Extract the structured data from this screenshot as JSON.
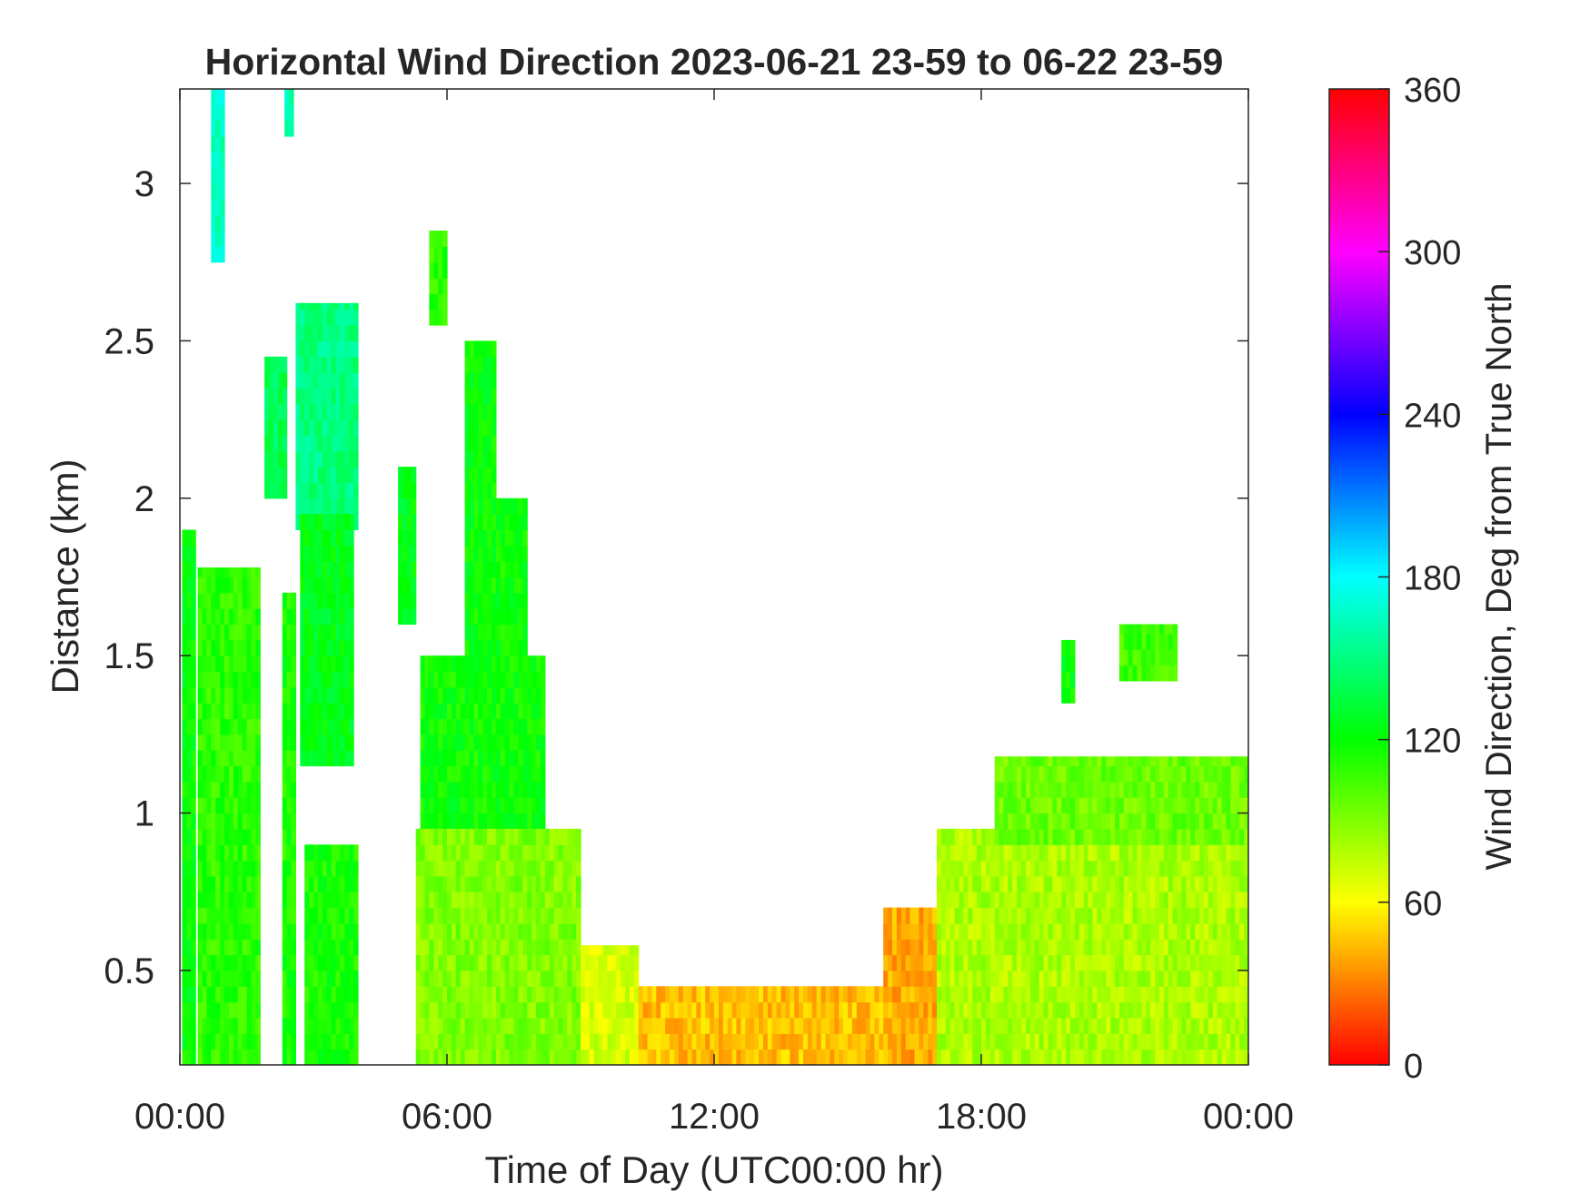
{
  "chart_data": {
    "type": "heatmap",
    "title": "Horizontal Wind Direction 2023-06-21 23-59 to 06-22 23-59",
    "xlabel": "Time of Day (UTC00:00 hr)",
    "ylabel": "Distance (km)",
    "x_ticks": [
      "00:00",
      "06:00",
      "12:00",
      "18:00",
      "00:00"
    ],
    "x_tick_hours": [
      0,
      6,
      12,
      18,
      24
    ],
    "xlim": [
      0,
      24
    ],
    "y_ticks": [
      "0.5",
      "1",
      "1.5",
      "2",
      "2.5",
      "3"
    ],
    "y_tick_values": [
      0.5,
      1,
      1.5,
      2,
      2.5,
      3
    ],
    "ylim": [
      0.2,
      3.3
    ],
    "colorbar": {
      "label": "Wind Direction, Deg from True North",
      "ticks": [
        "0",
        "60",
        "120",
        "180",
        "240",
        "300",
        "360"
      ],
      "tick_values": [
        0,
        60,
        120,
        180,
        240,
        300,
        360
      ],
      "range": [
        0,
        360
      ]
    },
    "colormap": "hsv",
    "grid": false,
    "regions": [
      {
        "t": [
          0.05,
          0.35
        ],
        "top_km": 1.9,
        "dir": 120
      },
      {
        "t": [
          0.4,
          1.8
        ],
        "top_km": 1.78,
        "dir": 110
      },
      {
        "t": [
          0.7,
          1.0
        ],
        "bottom_km": 2.75,
        "top_km": 3.3,
        "dir": 165
      },
      {
        "t": [
          2.35,
          2.55
        ],
        "bottom_km": 3.15,
        "top_km": 3.3,
        "dir": 160
      },
      {
        "t": [
          1.9,
          2.4
        ],
        "bottom_km": 2.0,
        "top_km": 2.45,
        "dir": 140
      },
      {
        "t": [
          2.3,
          2.6
        ],
        "top_km": 1.7,
        "dir": 115
      },
      {
        "t": [
          2.6,
          4.0
        ],
        "bottom_km": 1.9,
        "top_km": 2.62,
        "dir": 150
      },
      {
        "t": [
          2.7,
          3.9
        ],
        "bottom_km": 1.15,
        "top_km": 1.95,
        "dir": 125
      },
      {
        "t": [
          2.8,
          4.0
        ],
        "top_km": 0.9,
        "dir": 115
      },
      {
        "t": [
          4.9,
          5.3
        ],
        "bottom_km": 1.6,
        "top_km": 2.1,
        "dir": 125
      },
      {
        "t": [
          5.6,
          6.0
        ],
        "bottom_km": 2.55,
        "top_km": 2.85,
        "dir": 110
      },
      {
        "t": [
          6.4,
          7.1
        ],
        "bottom_km": 1.3,
        "top_km": 2.5,
        "dir": 120
      },
      {
        "t": [
          7.0,
          7.8
        ],
        "bottom_km": 1.3,
        "top_km": 2.0,
        "dir": 118
      },
      {
        "t": [
          5.4,
          8.2
        ],
        "bottom_km": 0.9,
        "top_km": 1.5,
        "dir": 118
      },
      {
        "t": [
          5.3,
          9.0
        ],
        "top_km": 0.95,
        "dir": 90
      },
      {
        "t": [
          9.0,
          10.3
        ],
        "top_km": 0.58,
        "dir": 70
      },
      {
        "t": [
          10.3,
          15.8
        ],
        "top_km": 0.45,
        "dir": 45
      },
      {
        "t": [
          15.8,
          18.0
        ],
        "top_km": 0.7,
        "dir": 40
      },
      {
        "t": [
          17.0,
          24.0
        ],
        "top_km": 0.95,
        "dir": 80
      },
      {
        "t": [
          18.3,
          24.0
        ],
        "bottom_km": 0.9,
        "top_km": 1.18,
        "dir": 95
      },
      {
        "t": [
          19.8,
          20.1
        ],
        "bottom_km": 1.35,
        "top_km": 1.55,
        "dir": 120
      },
      {
        "t": [
          21.1,
          22.4
        ],
        "bottom_km": 1.42,
        "top_km": 1.6,
        "dir": 105
      }
    ]
  }
}
